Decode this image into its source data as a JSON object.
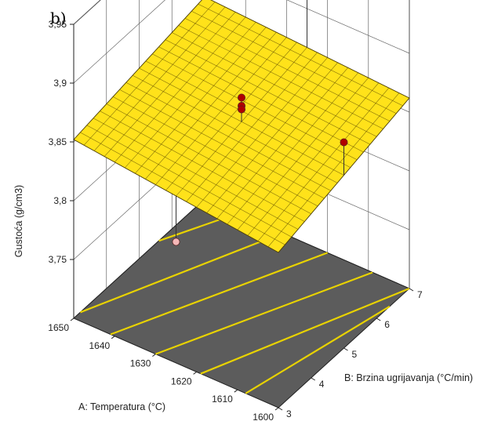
{
  "panel_label": "b)",
  "chart_data": {
    "type": "surface3d",
    "title": "",
    "panel_label": "b)",
    "x_axis": {
      "label": "A: Temperatura (°C)",
      "range": [
        1600,
        1650
      ],
      "ticks": [
        "1600",
        "1610",
        "1620",
        "1630",
        "1640",
        "1650"
      ]
    },
    "y_axis": {
      "label": "B: Brzina ugrijavanja (°C/min)",
      "range": [
        3,
        7
      ],
      "ticks": [
        "3",
        "4",
        "5",
        "6",
        "7"
      ]
    },
    "z_axis": {
      "label": "Gustoća (g/cm3)",
      "range": [
        3.7,
        3.95
      ],
      "ticks": [
        "3,75",
        "3,8",
        "3,85",
        "3,9",
        "3,95"
      ]
    },
    "surface": {
      "color": "#FFE21A",
      "mesh_color": "#5a4a00",
      "grid_n": 20,
      "corners": {
        "a1600_b3": 3.832,
        "a1650_b3": 3.852,
        "a1600_b7": 3.862,
        "a1650_b7": 3.872
      }
    },
    "floor": {
      "color": "#5C5C5C",
      "contours": [
        {
          "a": [
            1600,
            1608
          ],
          "b": [
            6.4,
            3
          ]
        },
        {
          "a": [
            1600,
            1619
          ],
          "b": [
            7,
            3
          ]
        },
        {
          "a": [
            1609,
            1630
          ],
          "b": [
            7,
            3
          ]
        },
        {
          "a": [
            1620,
            1641
          ],
          "b": [
            7,
            3
          ]
        },
        {
          "a": [
            1631,
            1650
          ],
          "b": [
            7,
            3.2
          ]
        },
        {
          "a": [
            1642,
            1650
          ],
          "b": [
            7,
            5.6
          ]
        }
      ],
      "contour_color": "#E8D200"
    },
    "design_points": [
      {
        "a": 1600,
        "b": 5,
        "z": 3.875,
        "position": "above"
      },
      {
        "a": 1650,
        "b": 5,
        "z": 3.837,
        "position": "below"
      },
      {
        "a": 1625,
        "b": 3,
        "z": 3.803,
        "position": "below"
      },
      {
        "a": 1625,
        "b": 7,
        "z": 3.915,
        "position": "above"
      },
      {
        "a": 1625,
        "b": 5,
        "z": 3.875,
        "position": "above"
      },
      {
        "a": 1625,
        "b": 5,
        "z": 3.868,
        "position": "above"
      },
      {
        "a": 1625,
        "b": 5,
        "z": 3.865,
        "position": "above"
      }
    ],
    "point_colors": {
      "above": "#B00000",
      "below": "#F6B8B8"
    },
    "grid": true
  }
}
